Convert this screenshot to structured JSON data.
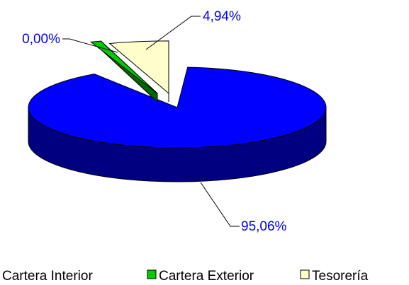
{
  "chart_data": {
    "type": "pie",
    "style": "3d-exploded",
    "categories": [
      "Cartera Interior",
      "Cartera Exterior",
      "Tesorería"
    ],
    "values": [
      95.06,
      0.0,
      4.94
    ],
    "value_labels": [
      "95,06%",
      "0,00%",
      "4,94%"
    ],
    "colors": {
      "Cartera Interior": {
        "top": "#0000ff",
        "side": "#000080"
      },
      "Cartera Exterior": {
        "top": "#00cc00",
        "side": "#006600"
      },
      "Tesorería": {
        "top": "#ffffcc",
        "side": "#999966"
      }
    },
    "label_color": "#0000ee",
    "legend_position": "bottom"
  }
}
